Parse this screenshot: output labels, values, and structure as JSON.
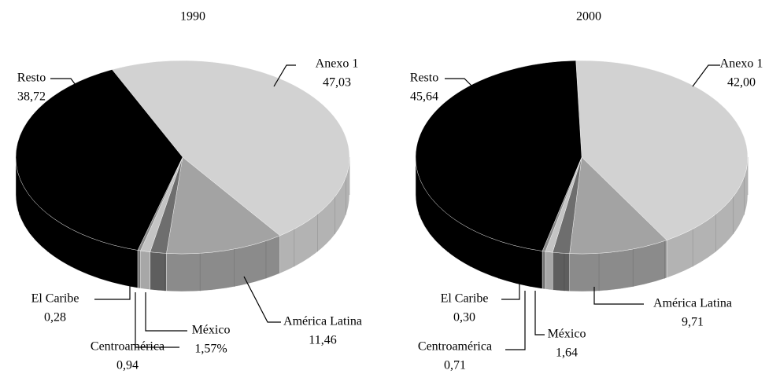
{
  "chart_data": [
    {
      "type": "pie",
      "title": "1990",
      "categories": [
        "Anexo 1",
        "América Latina",
        "México",
        "Centroamérica",
        "El Caribe",
        "Resto"
      ],
      "values": [
        47.03,
        11.46,
        1.57,
        0.94,
        0.28,
        38.72
      ],
      "value_labels": [
        "47,03",
        "11,46",
        "1,57%",
        "0,94",
        "0,28",
        "38,72"
      ],
      "colors": [
        "#d2d2d2",
        "#a3a3a3",
        "#6e6e6e",
        "#c4c4c4",
        "#8a8a8a",
        "#000000"
      ]
    },
    {
      "type": "pie",
      "title": "2000",
      "categories": [
        "Anexo 1",
        "América Latina",
        "México",
        "Centroamérica",
        "El Caribe",
        "Resto"
      ],
      "values": [
        42.0,
        9.71,
        1.64,
        0.71,
        0.3,
        45.64
      ],
      "value_labels": [
        "42,00",
        "9,71",
        "1,64",
        "0,71",
        "0,30",
        "45,64"
      ],
      "colors": [
        "#d2d2d2",
        "#a3a3a3",
        "#6e6e6e",
        "#c4c4c4",
        "#8a8a8a",
        "#000000"
      ]
    }
  ]
}
